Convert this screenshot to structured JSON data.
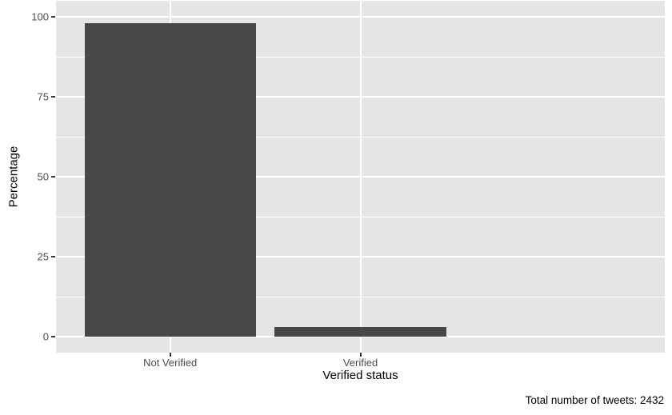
{
  "chart_data": {
    "type": "bar",
    "title": "",
    "categories": [
      "Not Verified",
      "Verified"
    ],
    "values": [
      98,
      3
    ],
    "xlabel": "Verified status",
    "ylabel": "Percentage",
    "caption": "Total number of tweets: 2432",
    "ylim": [
      -5,
      105
    ],
    "yticks": [
      0,
      25,
      50,
      75,
      100
    ],
    "ytick_labels": [
      "0",
      "25",
      "50",
      "75",
      "100"
    ],
    "minor_gridlines": [
      12.5,
      37.5,
      62.5,
      87.5
    ],
    "grid": "white major and minor horizontal gridlines, white vertical gridlines at category centers, on grey panel",
    "legend_position": "none",
    "colors": {
      "bar_fill": "#474747",
      "panel_background": "#E5E5E5",
      "gridline": "#FFFFFF",
      "tick_label": "#4D4D4D",
      "axis_title": "#000000",
      "tick_mark": "#333333",
      "figure_background": "#FFFFFF"
    }
  }
}
